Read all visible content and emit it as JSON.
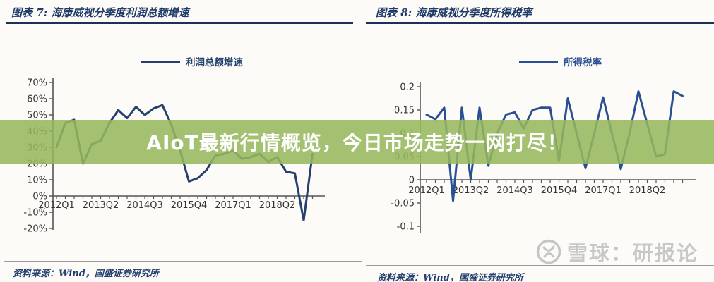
{
  "banner": {
    "text": "AIoT最新行情概览，今日市场走势一网打尽！",
    "background_color": "#96b75d",
    "text_color": "#ffffff"
  },
  "watermark": {
    "text": "雪球：研报论",
    "logo": "xueqiu-circle-logo",
    "color": "#c8c8c8"
  },
  "colors": {
    "title_navy": "#1e3a66",
    "axis_gray": "#555555",
    "rule_gray": "#9a9a9a"
  },
  "chart_data": [
    {
      "type": "line",
      "title": "图表 7: 海康威视分季度利润总额增速",
      "legend": "利润总额增速",
      "line_name": "profit-growth-line",
      "color": "#24406e",
      "source": "资料来源：Wind，国盛证券研究所",
      "x_start": "2012Q1",
      "x_freq": "quarterly",
      "x_tick_labels": [
        {
          "index": 0,
          "label": "2012Q1"
        },
        {
          "index": 5,
          "label": "2013Q2"
        },
        {
          "index": 10,
          "label": "2014Q3"
        },
        {
          "index": 15,
          "label": "2015Q4"
        },
        {
          "index": 20,
          "label": "2017Q1"
        },
        {
          "index": 25,
          "label": "2018Q2"
        }
      ],
      "y_ticks": [
        {
          "label": "70%",
          "value": 70
        },
        {
          "label": "60%",
          "value": 60
        },
        {
          "label": "50%",
          "value": 50
        },
        {
          "label": "40%",
          "value": 40
        },
        {
          "label": "30%",
          "value": 30
        },
        {
          "label": "20%",
          "value": 20
        },
        {
          "label": "10%",
          "value": 10
        },
        {
          "label": "0%",
          "value": 0
        },
        {
          "label": "-10%",
          "value": -10
        },
        {
          "label": "-20%",
          "value": -20
        }
      ],
      "ylim": [
        -20,
        70
      ],
      "values": [
        30,
        45,
        47,
        20,
        32,
        34,
        45,
        53,
        48,
        55,
        50,
        54,
        56,
        44,
        28,
        9,
        11,
        16,
        25,
        26,
        28,
        23,
        24,
        26,
        21,
        24,
        15,
        14,
        -15,
        26
      ]
    },
    {
      "type": "line",
      "title": "图表 8: 海康威视分季度所得税率",
      "legend": "所得税率",
      "line_name": "income-tax-rate-line",
      "color": "#2a4f92",
      "source": "资料来源：Wind，国盛证券研究所",
      "x_start": "2012Q1",
      "x_freq": "quarterly",
      "x_tick_labels": [
        {
          "index": 0,
          "label": "2012Q1"
        },
        {
          "index": 5,
          "label": "2013Q2"
        },
        {
          "index": 10,
          "label": "2014Q3"
        },
        {
          "index": 15,
          "label": "2015Q4"
        },
        {
          "index": 20,
          "label": "2017Q1"
        },
        {
          "index": 25,
          "label": "2018Q2"
        }
      ],
      "y_ticks": [
        {
          "label": "0.2",
          "value": 0.2
        },
        {
          "label": "0.15",
          "value": 0.15
        },
        {
          "label": "0.1",
          "value": 0.1
        },
        {
          "label": "0.05",
          "value": 0.05
        },
        {
          "label": "0",
          "value": 0
        },
        {
          "label": "-0.05",
          "value": -0.05
        },
        {
          "label": "-0.1",
          "value": -0.1
        }
      ],
      "ylim": [
        -0.1,
        0.2
      ],
      "values": [
        0.14,
        0.13,
        0.155,
        -0.045,
        0.155,
        0,
        0.155,
        0.03,
        0.1,
        0.14,
        0.145,
        0.11,
        0.15,
        0.155,
        0.155,
        0.04,
        0.175,
        0.1,
        0.025,
        0.1,
        0.177,
        0.1,
        0.023,
        0.1,
        0.19,
        0.12,
        0.05,
        0.055,
        0.19,
        0.18
      ]
    }
  ]
}
